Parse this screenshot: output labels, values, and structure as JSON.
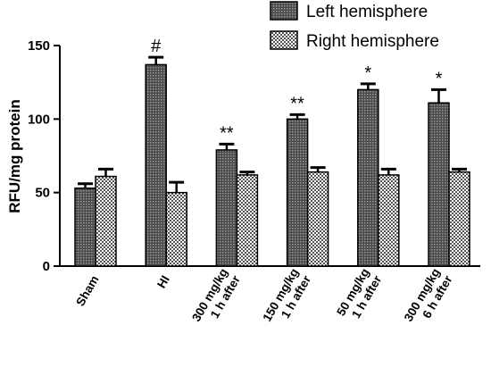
{
  "chart_data": {
    "type": "bar",
    "ylabel": "RFU/mg protein",
    "xlabel": "",
    "ylim": [
      0,
      150
    ],
    "yticks": [
      0,
      50,
      100,
      150
    ],
    "categories": [
      [
        "Sham"
      ],
      [
        "HI"
      ],
      [
        "300 mg/kg",
        "1 h after"
      ],
      [
        "150 mg/kg",
        "1 h after"
      ],
      [
        "50 mg/kg",
        "1 h after"
      ],
      [
        "300 mg/kg",
        "6 h after"
      ]
    ],
    "series": [
      {
        "name": "Left hemisphere",
        "pattern": "dark-dots",
        "values": [
          53,
          137,
          79,
          100,
          120,
          111
        ],
        "errors": [
          3,
          5,
          4,
          3,
          4,
          9
        ],
        "annotations": [
          "",
          "#",
          "**",
          "**",
          "*",
          "*"
        ]
      },
      {
        "name": "Right hemisphere",
        "pattern": "checkered",
        "values": [
          61,
          50,
          62,
          64,
          62,
          64
        ],
        "errors": [
          5,
          7,
          2,
          3,
          4,
          2
        ],
        "annotations": [
          "",
          "",
          "",
          "",
          "",
          ""
        ]
      }
    ],
    "legend": "top-right",
    "grid": false
  },
  "colors": {
    "bar_outline": "#000000",
    "left_fill_bg": "#4a4a4a",
    "left_fill_dots": "#9a9a9a",
    "right_check_dark": "#555555",
    "right_check_light": "#ffffff"
  }
}
